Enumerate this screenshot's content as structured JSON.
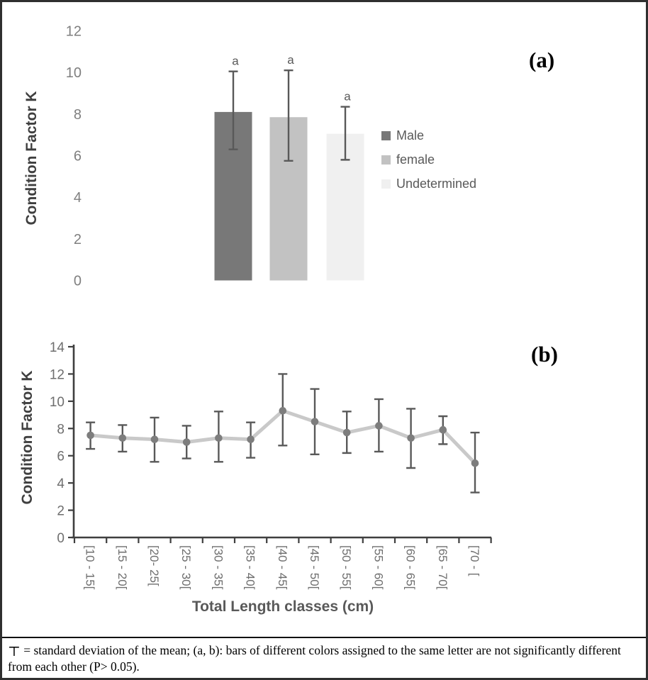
{
  "figure": {
    "panel_a_label": "(a)",
    "panel_b_label": "(b)"
  },
  "colors": {
    "male_bar": "#787878",
    "female_bar": "#c2c2c2",
    "undetermined_bar": "#f0f0f0",
    "error_bar": "#595959",
    "line": "#c9c9c9",
    "marker": "#7d7d7d",
    "axis": "#3f3f3f",
    "tick_label_a": "#7f7f7f",
    "tick_label_b": "#6e6e6e",
    "axis_title_text": "#3f3f3f",
    "legend_text": "#595959",
    "border": "#2f2f2f"
  },
  "chart_data": [
    {
      "id": "panel-a",
      "type": "bar",
      "title": "",
      "ylabel": "Condition Factor K",
      "xlabel": "",
      "ylim": [
        0,
        12
      ],
      "yticks": [
        0,
        2,
        4,
        6,
        8,
        10,
        12
      ],
      "grid": false,
      "categories": [
        "Male",
        "female",
        "Undetermined"
      ],
      "values": [
        8.1,
        7.85,
        7.05
      ],
      "error_upper": [
        10.05,
        10.1,
        8.35
      ],
      "error_lower": [
        6.3,
        5.75,
        5.8
      ],
      "sig_letters": [
        "a",
        "a",
        "a"
      ],
      "bar_colors": [
        "#787878",
        "#c2c2c2",
        "#f0f0f0"
      ],
      "legend_position": "right",
      "legend": [
        {
          "label": "Male",
          "color": "#787878"
        },
        {
          "label": "female",
          "color": "#c2c2c2"
        },
        {
          "label": "Undetermined",
          "color": "#f0f0f0"
        }
      ]
    },
    {
      "id": "panel-b",
      "type": "line",
      "title": "",
      "ylabel": "Condition Factor K",
      "xlabel": "Total Length classes  (cm)",
      "ylim": [
        0,
        14
      ],
      "yticks": [
        0,
        2,
        4,
        6,
        8,
        10,
        12,
        14
      ],
      "grid": false,
      "categories": [
        "[10 - 15[",
        "[15 - 20[",
        "[20- 25[",
        "[25 - 30[",
        "[30 - 35[",
        "[35 - 40[",
        "[40 - 45[",
        "[45 - 50[",
        "[50 - 55[",
        "[55 - 60[",
        "[60 - 65[",
        "[65 - 70[",
        "[70 - ["
      ],
      "values": [
        7.5,
        7.3,
        7.2,
        7.0,
        7.3,
        7.2,
        9.3,
        8.5,
        7.7,
        8.2,
        7.3,
        7.9,
        5.45
      ],
      "error_upper": [
        8.45,
        8.25,
        8.8,
        8.2,
        9.25,
        8.45,
        12.0,
        10.9,
        9.25,
        10.15,
        9.45,
        8.9,
        7.7
      ],
      "error_lower": [
        6.5,
        6.3,
        5.55,
        5.8,
        5.55,
        5.85,
        6.75,
        6.1,
        6.2,
        6.3,
        5.1,
        6.85,
        3.3
      ]
    }
  ],
  "footnote": {
    "symbol": "⊤",
    "text": "= standard deviation of the mean; (a, b): bars of different colors assigned to the same letter are not significantly different\nfrom each other (P> 0.05)."
  }
}
